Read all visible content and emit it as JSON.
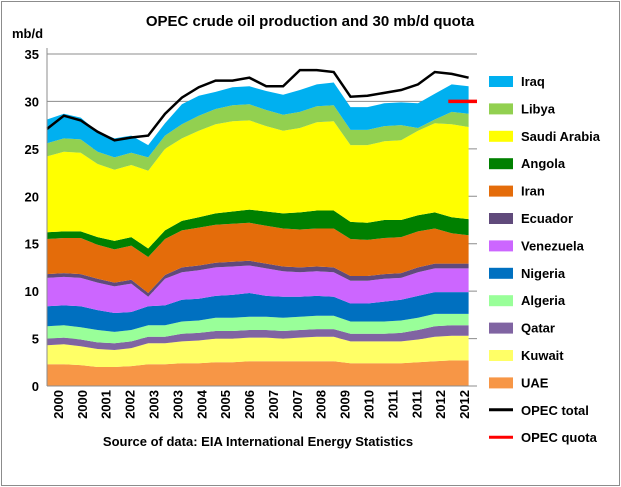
{
  "chart_data": {
    "type": "area",
    "title": "OPEC crude oil production and 30 mb/d quota",
    "ylabel": "mb/d",
    "source": "Source of data: EIA International Energy Statistics",
    "ylim": [
      0,
      35
    ],
    "yticks": [
      "0",
      "5",
      "10",
      "15",
      "20",
      "25",
      "30",
      "35"
    ],
    "xticks": [
      "2000",
      "2000",
      "2001",
      "2002",
      "2003",
      "2003",
      "2004",
      "2005",
      "2006",
      "2007",
      "2007",
      "2008",
      "2009",
      "2010",
      "2011",
      "2011",
      "2012",
      "2012"
    ],
    "x": [
      2000.0,
      2000.5,
      2001.0,
      2001.5,
      2002.0,
      2002.5,
      2003.0,
      2003.5,
      2004.0,
      2004.5,
      2005.0,
      2005.5,
      2006.0,
      2006.5,
      2007.0,
      2007.5,
      2008.0,
      2008.5,
      2009.0,
      2009.5,
      2010.0,
      2010.5,
      2011.0,
      2011.5,
      2012.0,
      2012.5
    ],
    "series": [
      {
        "name": "UAE",
        "color": "#f79646",
        "values": [
          2.3,
          2.3,
          2.2,
          2.0,
          2.0,
          2.1,
          2.3,
          2.3,
          2.4,
          2.4,
          2.5,
          2.5,
          2.6,
          2.6,
          2.6,
          2.6,
          2.6,
          2.6,
          2.4,
          2.4,
          2.4,
          2.4,
          2.5,
          2.6,
          2.7,
          2.7
        ]
      },
      {
        "name": "Kuwait",
        "color": "#ffff66",
        "values": [
          2.0,
          2.1,
          2.0,
          1.9,
          1.8,
          1.9,
          2.2,
          2.2,
          2.3,
          2.4,
          2.5,
          2.5,
          2.5,
          2.5,
          2.4,
          2.5,
          2.6,
          2.6,
          2.3,
          2.3,
          2.3,
          2.3,
          2.4,
          2.6,
          2.6,
          2.6
        ]
      },
      {
        "name": "Qatar",
        "color": "#8064a2",
        "values": [
          0.7,
          0.7,
          0.7,
          0.7,
          0.7,
          0.7,
          0.7,
          0.7,
          0.8,
          0.8,
          0.8,
          0.8,
          0.8,
          0.8,
          0.8,
          0.8,
          0.8,
          0.8,
          0.8,
          0.8,
          0.8,
          0.9,
          1.0,
          1.1,
          1.1,
          1.1
        ]
      },
      {
        "name": "Algeria",
        "color": "#99ff99",
        "values": [
          1.3,
          1.3,
          1.3,
          1.3,
          1.2,
          1.2,
          1.2,
          1.2,
          1.3,
          1.3,
          1.4,
          1.4,
          1.4,
          1.4,
          1.4,
          1.4,
          1.4,
          1.4,
          1.3,
          1.3,
          1.3,
          1.3,
          1.3,
          1.3,
          1.2,
          1.2
        ]
      },
      {
        "name": "Nigeria",
        "color": "#0070c0",
        "values": [
          2.1,
          2.1,
          2.2,
          2.1,
          2.0,
          1.9,
          2.0,
          2.1,
          2.3,
          2.3,
          2.3,
          2.4,
          2.5,
          2.2,
          2.2,
          2.1,
          2.1,
          2.0,
          1.9,
          1.9,
          2.1,
          2.2,
          2.3,
          2.3,
          2.3,
          2.3
        ]
      },
      {
        "name": "Venezuela",
        "color": "#cc66ff",
        "values": [
          3.0,
          3.0,
          3.0,
          2.9,
          2.8,
          3.0,
          1.0,
          2.8,
          2.9,
          3.0,
          3.0,
          3.0,
          2.9,
          2.9,
          2.7,
          2.6,
          2.6,
          2.6,
          2.4,
          2.4,
          2.4,
          2.3,
          2.5,
          2.5,
          2.5,
          2.5
        ]
      },
      {
        "name": "Ecuador",
        "color": "#604a7b",
        "values": [
          0.4,
          0.4,
          0.4,
          0.4,
          0.4,
          0.4,
          0.4,
          0.4,
          0.5,
          0.5,
          0.5,
          0.5,
          0.5,
          0.5,
          0.5,
          0.5,
          0.5,
          0.5,
          0.5,
          0.5,
          0.5,
          0.5,
          0.5,
          0.5,
          0.5,
          0.5
        ]
      },
      {
        "name": "Iran",
        "color": "#e46c0a",
        "values": [
          3.7,
          3.7,
          3.8,
          3.6,
          3.5,
          3.6,
          3.8,
          3.8,
          3.9,
          4.0,
          4.0,
          4.0,
          4.0,
          4.0,
          4.0,
          4.0,
          4.0,
          4.1,
          3.9,
          3.8,
          3.8,
          3.8,
          3.8,
          3.7,
          3.2,
          3.0
        ]
      },
      {
        "name": "Angola",
        "color": "#008000",
        "values": [
          0.7,
          0.7,
          0.7,
          0.8,
          0.9,
          0.9,
          0.9,
          0.9,
          1.0,
          1.1,
          1.2,
          1.3,
          1.4,
          1.5,
          1.6,
          1.8,
          1.9,
          1.9,
          1.8,
          1.8,
          1.9,
          1.8,
          1.7,
          1.7,
          1.7,
          1.7
        ]
      },
      {
        "name": "Saudi Arabia",
        "color": "#ffff00",
        "values": [
          8.0,
          8.4,
          8.3,
          7.7,
          7.5,
          7.6,
          8.2,
          8.6,
          8.7,
          9.1,
          9.4,
          9.5,
          9.4,
          9.0,
          8.7,
          8.9,
          9.3,
          9.4,
          8.1,
          8.2,
          8.3,
          8.4,
          8.9,
          9.4,
          9.8,
          9.7
        ]
      },
      {
        "name": "Libya",
        "color": "#92d050",
        "values": [
          1.4,
          1.4,
          1.4,
          1.3,
          1.3,
          1.3,
          1.4,
          1.4,
          1.5,
          1.6,
          1.6,
          1.7,
          1.7,
          1.7,
          1.7,
          1.7,
          1.7,
          1.7,
          1.6,
          1.6,
          1.6,
          1.6,
          0.3,
          0.4,
          1.3,
          1.4
        ]
      },
      {
        "name": "Iraq",
        "color": "#00b0f0",
        "values": [
          2.5,
          2.6,
          2.3,
          2.1,
          2.0,
          1.8,
          1.3,
          1.3,
          2.1,
          2.1,
          1.8,
          1.9,
          1.9,
          2.0,
          2.1,
          2.3,
          2.3,
          2.4,
          2.4,
          2.4,
          2.4,
          2.4,
          2.6,
          2.7,
          2.9,
          2.9
        ]
      }
    ],
    "lines": [
      {
        "name": "OPEC total",
        "color": "#000000",
        "values": [
          27.1,
          28.5,
          28.0,
          26.8,
          25.9,
          26.2,
          26.4,
          28.7,
          30.4,
          31.5,
          32.2,
          32.2,
          32.5,
          31.6,
          31.6,
          33.3,
          33.3,
          33.1,
          30.5,
          30.6,
          30.9,
          31.2,
          31.8,
          33.1,
          32.9,
          32.5
        ]
      },
      {
        "name": "OPEC quota",
        "color": "#ff0000",
        "x": [
          2011.9,
          2012.75
        ],
        "values": [
          30,
          30
        ]
      }
    ],
    "legend": [
      "Iraq",
      "Libya",
      "Saudi Arabia",
      "Angola",
      "Iran",
      "Ecuador",
      "Venezuela",
      "Nigeria",
      "Algeria",
      "Qatar",
      "Kuwait",
      "UAE",
      "OPEC total",
      "OPEC quota"
    ],
    "grid": "horizontal",
    "legend_position": "right"
  }
}
